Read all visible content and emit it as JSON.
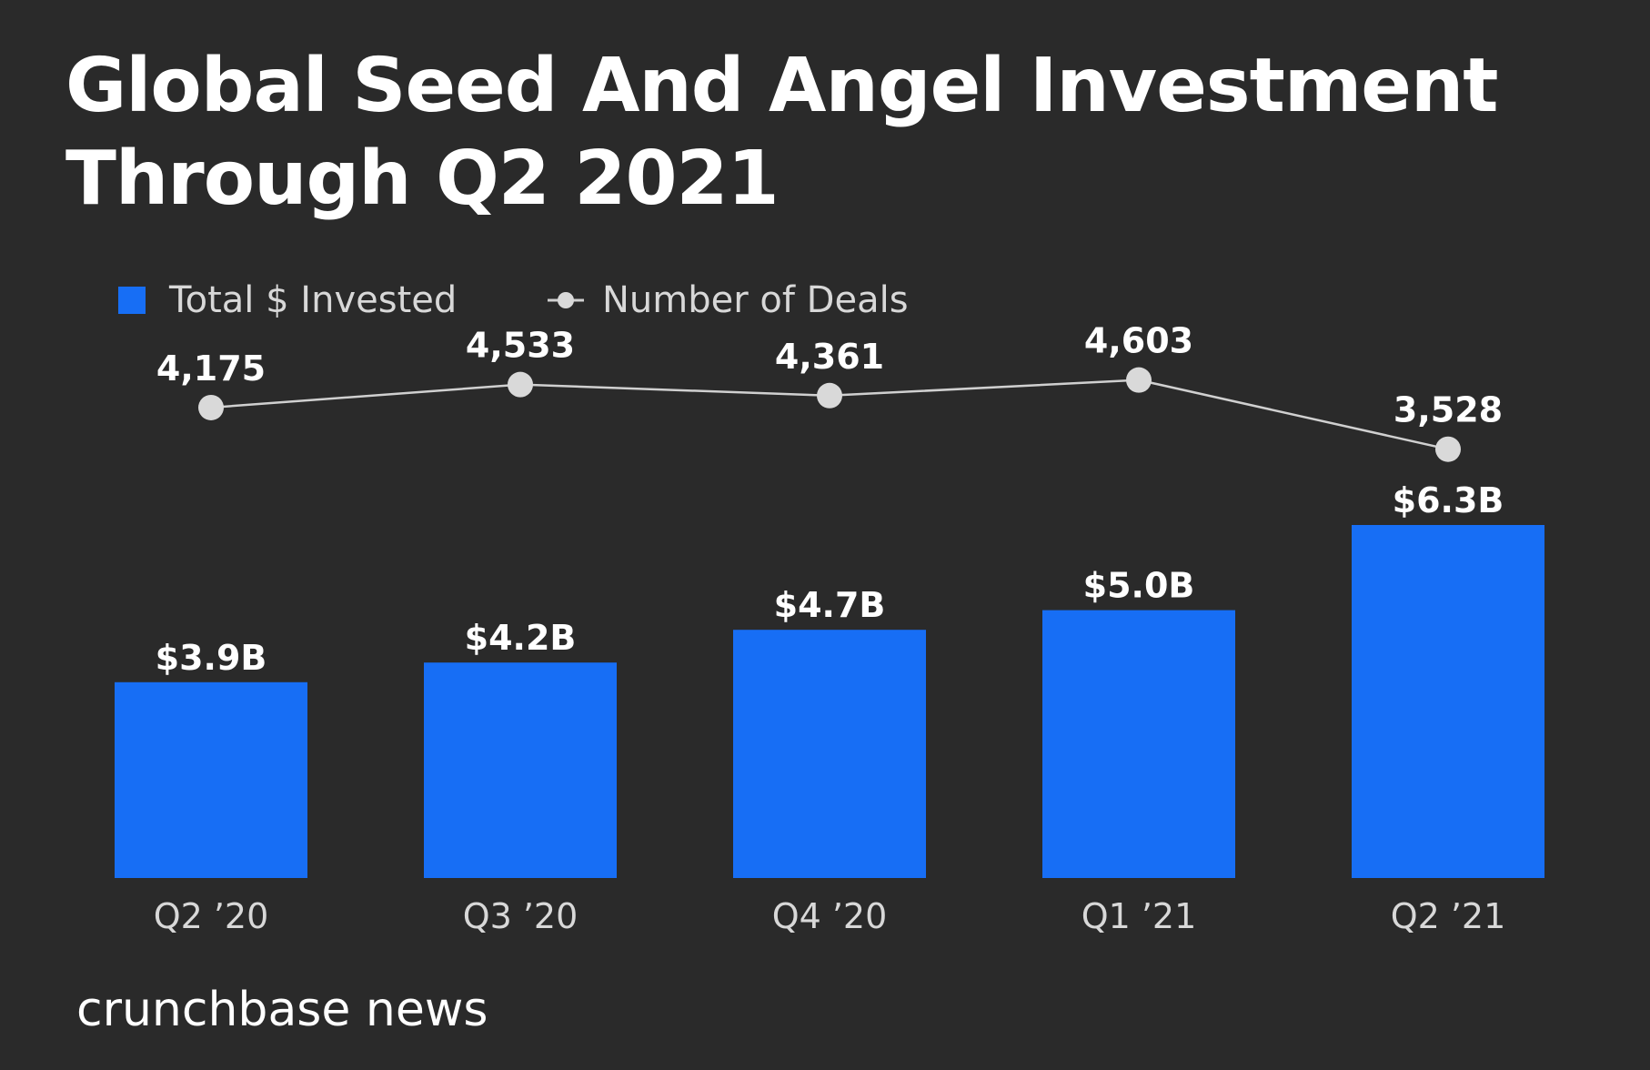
{
  "chart_data": {
    "type": "bar",
    "title_lines": [
      "Global Seed And Angel Investment",
      "Through Q2 2021"
    ],
    "categories": [
      "Q2 ’20",
      "Q3 ’20",
      "Q4 ’20",
      "Q1 ’21",
      "Q2 ’21"
    ],
    "series": [
      {
        "name": "Total $ Invested",
        "kind": "bar",
        "values": [
          3.9,
          4.2,
          4.7,
          5.0,
          6.3
        ],
        "labels": [
          "$3.9B",
          "$4.2B",
          "$4.7B",
          "$5.0B",
          "$6.3B"
        ]
      },
      {
        "name": "Number of Deals",
        "kind": "line",
        "values": [
          4175,
          4533,
          4361,
          4603,
          3528
        ],
        "labels": [
          "4,175",
          "4,533",
          "4,361",
          "4,603",
          "3,528"
        ]
      }
    ],
    "ylim_bars": [
      0,
      7.0
    ],
    "ylim_deals": [
      0,
      5000
    ],
    "grid": false,
    "legend_position": "top-left"
  },
  "colors": {
    "background": "#2a2a2a",
    "bar": "#176ef5",
    "line": "#d0d0d0",
    "marker": "#d9d9d9",
    "text": "#ffffff",
    "axis_text": "#d8d8d8"
  },
  "brand": "crunchbase news"
}
